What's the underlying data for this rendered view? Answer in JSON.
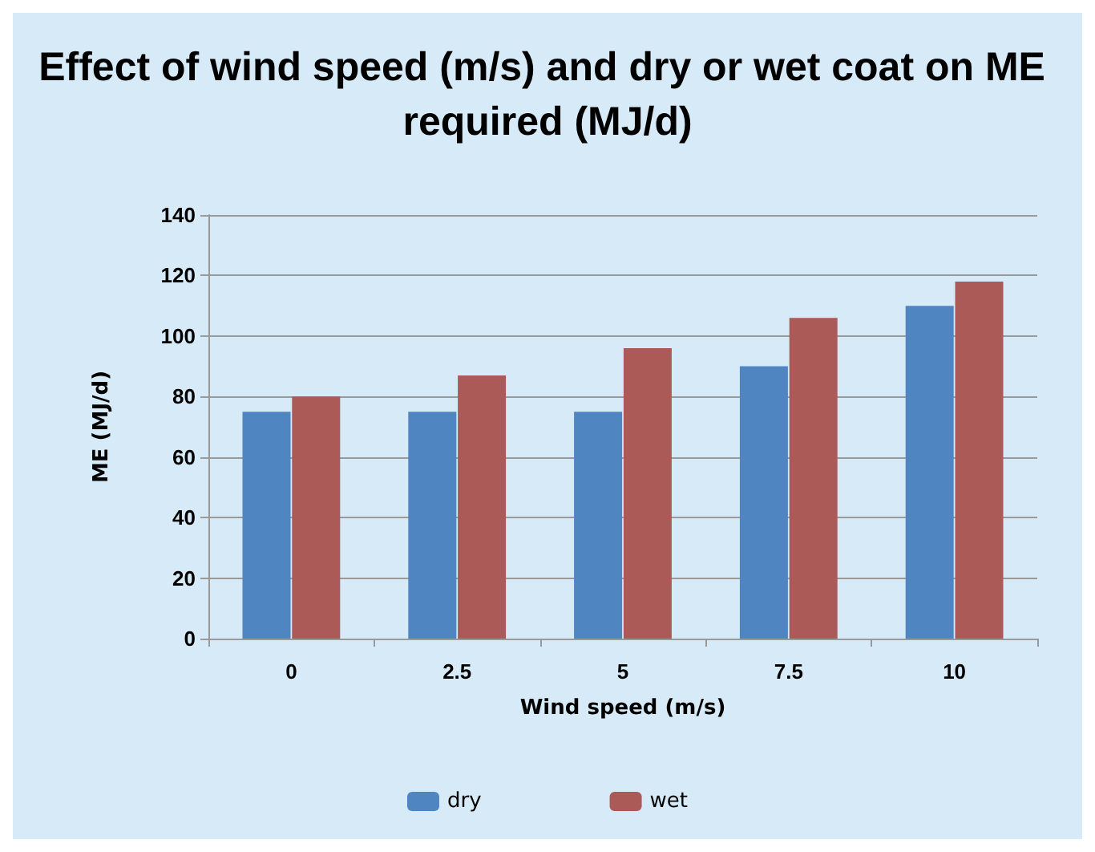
{
  "chart_data": {
    "type": "bar",
    "title": "Effect of wind speed (m/s) and dry or wet coat on ME required (MJ/d)",
    "xlabel": "Wind speed (m/s)",
    "ylabel": "ME (MJ/d)",
    "categories": [
      "0",
      "2.5",
      "5",
      "7.5",
      "10"
    ],
    "series": [
      {
        "name": "dry",
        "color": "#4f86c2",
        "values": [
          75,
          75,
          75,
          90,
          110
        ]
      },
      {
        "name": "wet",
        "color": "#ab5a58",
        "values": [
          80,
          87,
          96,
          106,
          118
        ]
      }
    ],
    "ylim": [
      0,
      140
    ],
    "yticks": [
      0,
      20,
      40,
      60,
      80,
      100,
      120,
      140
    ],
    "grid": "y",
    "legend": "bottom"
  }
}
